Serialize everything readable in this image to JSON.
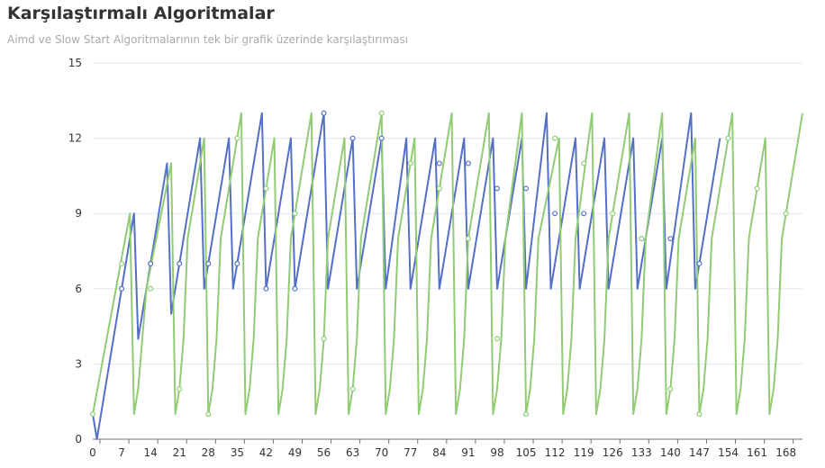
{
  "chart_data": {
    "type": "line",
    "title": "Karşılaştırmalı Algoritmalar",
    "subtitle": "Aimd ve Slow Start Algoritmalarının tek bir grafik üzerinde karşılaştırıması",
    "xlabel": "",
    "ylabel": "",
    "xlim": [
      0,
      172
    ],
    "ylim": [
      0,
      15
    ],
    "x_ticks": [
      0,
      7,
      14,
      21,
      28,
      35,
      42,
      49,
      56,
      63,
      70,
      77,
      84,
      91,
      98,
      105,
      112,
      119,
      126,
      133,
      140,
      147,
      154,
      161,
      168
    ],
    "y_ticks": [
      0,
      3,
      6,
      9,
      12,
      15
    ],
    "grid": "horizontal",
    "legend": "none",
    "series": [
      {
        "color": "#5470c6",
        "points": [
          [
            0,
            1
          ],
          [
            1,
            0
          ],
          [
            10,
            9
          ],
          [
            11,
            4
          ],
          [
            18,
            11
          ],
          [
            19,
            5
          ],
          [
            26,
            12
          ],
          [
            27,
            6
          ],
          [
            33,
            12
          ],
          [
            34,
            6
          ],
          [
            41,
            13
          ],
          [
            42,
            6
          ],
          [
            48,
            12
          ],
          [
            49,
            6
          ],
          [
            56,
            13
          ],
          [
            57,
            6
          ],
          [
            63,
            12
          ],
          [
            64,
            6
          ],
          [
            70,
            12
          ],
          [
            71,
            6
          ],
          [
            76,
            12
          ],
          [
            77,
            6
          ],
          [
            83,
            12
          ],
          [
            84,
            6
          ],
          [
            90,
            12
          ],
          [
            91,
            6
          ],
          [
            97,
            12
          ],
          [
            98,
            6
          ],
          [
            104,
            12
          ],
          [
            105,
            6
          ],
          [
            110,
            13
          ],
          [
            111,
            6
          ],
          [
            117,
            12
          ],
          [
            118,
            6
          ],
          [
            124,
            12
          ],
          [
            125,
            6
          ],
          [
            131,
            12
          ],
          [
            132,
            6
          ],
          [
            138,
            12
          ],
          [
            139,
            6
          ],
          [
            145,
            13
          ],
          [
            146,
            6
          ],
          [
            152,
            12
          ]
        ],
        "markers": [
          [
            7,
            6
          ],
          [
            14,
            7
          ],
          [
            21,
            7
          ],
          [
            28,
            7
          ],
          [
            35,
            7
          ],
          [
            42,
            6
          ],
          [
            49,
            6
          ],
          [
            56,
            13
          ],
          [
            63,
            12
          ],
          [
            70,
            12
          ],
          [
            84,
            11
          ],
          [
            91,
            11
          ],
          [
            98,
            10
          ],
          [
            105,
            10
          ],
          [
            112,
            9
          ],
          [
            119,
            9
          ],
          [
            133,
            8
          ],
          [
            140,
            8
          ],
          [
            147,
            7
          ]
        ]
      },
      {
        "color": "#91cc75",
        "points": [
          [
            0,
            1
          ],
          [
            9,
            9
          ],
          [
            10,
            1
          ],
          [
            11,
            2
          ],
          [
            12,
            4
          ],
          [
            13,
            6
          ],
          [
            19,
            11
          ],
          [
            20,
            1
          ],
          [
            21,
            2
          ],
          [
            22,
            4
          ],
          [
            23,
            8
          ],
          [
            27,
            12
          ],
          [
            28,
            1
          ],
          [
            29,
            2
          ],
          [
            30,
            4
          ],
          [
            31,
            8
          ],
          [
            36,
            13
          ],
          [
            37,
            1
          ],
          [
            38,
            2
          ],
          [
            39,
            4
          ],
          [
            40,
            8
          ],
          [
            44,
            12
          ],
          [
            45,
            1
          ],
          [
            46,
            2
          ],
          [
            47,
            4
          ],
          [
            48,
            8
          ],
          [
            53,
            13
          ],
          [
            54,
            1
          ],
          [
            55,
            2
          ],
          [
            56,
            4
          ],
          [
            57,
            8
          ],
          [
            61,
            12
          ],
          [
            62,
            1
          ],
          [
            63,
            2
          ],
          [
            64,
            4
          ],
          [
            65,
            8
          ],
          [
            70,
            13
          ],
          [
            71,
            1
          ],
          [
            72,
            2
          ],
          [
            73,
            4
          ],
          [
            74,
            8
          ],
          [
            78,
            12
          ],
          [
            79,
            1
          ],
          [
            80,
            2
          ],
          [
            81,
            4
          ],
          [
            82,
            8
          ],
          [
            87,
            13
          ],
          [
            88,
            1
          ],
          [
            89,
            2
          ],
          [
            90,
            4
          ],
          [
            91,
            8
          ],
          [
            96,
            13
          ],
          [
            97,
            1
          ],
          [
            98,
            2
          ],
          [
            99,
            4
          ],
          [
            100,
            8
          ],
          [
            104,
            13
          ],
          [
            105,
            1
          ],
          [
            106,
            2
          ],
          [
            107,
            4
          ],
          [
            108,
            8
          ],
          [
            113,
            12
          ],
          [
            114,
            1
          ],
          [
            115,
            2
          ],
          [
            116,
            4
          ],
          [
            117,
            8
          ],
          [
            121,
            13
          ],
          [
            122,
            1
          ],
          [
            123,
            2
          ],
          [
            124,
            4
          ],
          [
            125,
            8
          ],
          [
            130,
            13
          ],
          [
            131,
            1
          ],
          [
            132,
            2
          ],
          [
            133,
            4
          ],
          [
            134,
            8
          ],
          [
            138,
            13
          ],
          [
            139,
            1
          ],
          [
            140,
            2
          ],
          [
            141,
            4
          ],
          [
            142,
            8
          ],
          [
            146,
            12
          ],
          [
            147,
            1
          ],
          [
            148,
            2
          ],
          [
            149,
            4
          ],
          [
            150,
            8
          ],
          [
            155,
            13
          ],
          [
            156,
            1
          ],
          [
            157,
            2
          ],
          [
            158,
            4
          ],
          [
            159,
            8
          ],
          [
            163,
            12
          ],
          [
            164,
            1
          ],
          [
            165,
            2
          ],
          [
            166,
            4
          ],
          [
            167,
            8
          ],
          [
            172,
            13
          ]
        ],
        "markers": [
          [
            0,
            1
          ],
          [
            7,
            7
          ],
          [
            14,
            6
          ],
          [
            21,
            2
          ],
          [
            28,
            1
          ],
          [
            35,
            12
          ],
          [
            42,
            10
          ],
          [
            49,
            9
          ],
          [
            56,
            4
          ],
          [
            63,
            2
          ],
          [
            70,
            13
          ],
          [
            77,
            11
          ],
          [
            84,
            10
          ],
          [
            91,
            8
          ],
          [
            98,
            4
          ],
          [
            105,
            1
          ],
          [
            112,
            12
          ],
          [
            119,
            11
          ],
          [
            126,
            9
          ],
          [
            133,
            8
          ],
          [
            140,
            2
          ],
          [
            147,
            1
          ],
          [
            154,
            12
          ],
          [
            161,
            10
          ],
          [
            168,
            9
          ]
        ]
      }
    ]
  }
}
